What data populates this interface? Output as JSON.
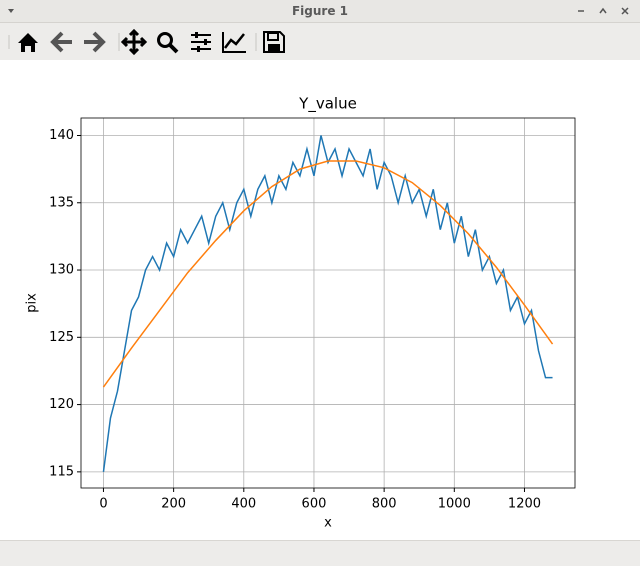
{
  "window": {
    "title": "Figure 1"
  },
  "chart_data": {
    "type": "line",
    "title": "Y_value",
    "xlabel": "x",
    "ylabel": "pix",
    "series": [
      {
        "color": "#1f77b4",
        "x": [
          0,
          20,
          40,
          60,
          80,
          100,
          120,
          140,
          160,
          180,
          200,
          220,
          240,
          260,
          280,
          300,
          320,
          340,
          360,
          380,
          400,
          420,
          440,
          460,
          480,
          500,
          520,
          540,
          560,
          580,
          600,
          620,
          640,
          660,
          680,
          700,
          720,
          740,
          760,
          780,
          800,
          820,
          840,
          860,
          880,
          900,
          920,
          940,
          960,
          980,
          1000,
          1020,
          1040,
          1060,
          1080,
          1100,
          1120,
          1140,
          1160,
          1180,
          1200,
          1220,
          1240,
          1260,
          1280
        ],
        "values": [
          115,
          119,
          121,
          124,
          127,
          128,
          130,
          131,
          130,
          132,
          131,
          133,
          132,
          133,
          134,
          132,
          134,
          135,
          133,
          135,
          136,
          134,
          136,
          137,
          135,
          137,
          136,
          138,
          137,
          139,
          137,
          140,
          138,
          139,
          137,
          139,
          138,
          137,
          139,
          136,
          138,
          137,
          135,
          137,
          135,
          136,
          134,
          136,
          133,
          135,
          132,
          134,
          131,
          133,
          130,
          131,
          129,
          130,
          127,
          128,
          126,
          127,
          124,
          122,
          122
        ]
      },
      {
        "color": "#ff7f0e",
        "x": [
          0,
          80,
          160,
          240,
          320,
          400,
          480,
          560,
          640,
          720,
          800,
          880,
          960,
          1040,
          1120,
          1200,
          1280
        ],
        "values": [
          121.3,
          124.2,
          127.0,
          129.8,
          132.2,
          134.4,
          136.2,
          137.5,
          138.1,
          138.1,
          137.6,
          136.5,
          134.8,
          132.7,
          130.2,
          127.4,
          124.5
        ]
      }
    ],
    "xlim": [
      -64,
      1344
    ],
    "xticks": [
      0,
      200,
      400,
      600,
      800,
      1000,
      1200
    ],
    "ylim": [
      113.8,
      141.3
    ],
    "yticks": [
      115,
      120,
      125,
      130,
      135,
      140
    ],
    "grid": true
  }
}
